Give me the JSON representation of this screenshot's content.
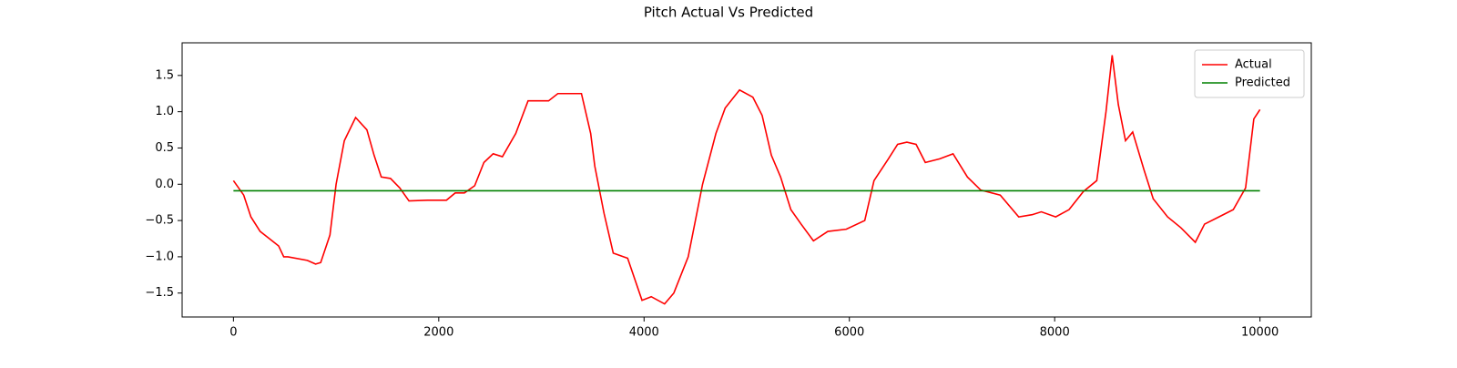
{
  "chart_data": {
    "type": "line",
    "title": "Pitch Actual Vs Predicted",
    "series": [
      {
        "name": "Actual",
        "color": "#ff0000",
        "x": [
          0,
          100,
          170,
          260,
          350,
          440,
          490,
          530,
          720,
          800,
          850,
          940,
          1000,
          1080,
          1190,
          1300,
          1370,
          1440,
          1530,
          1620,
          1710,
          1890,
          2075,
          2160,
          2250,
          2350,
          2440,
          2530,
          2620,
          2750,
          2870,
          3070,
          3160,
          3390,
          3480,
          3520,
          3610,
          3700,
          3840,
          3980,
          4070,
          4200,
          4290,
          4430,
          4570,
          4700,
          4790,
          4930,
          5060,
          5150,
          5240,
          5330,
          5430,
          5530,
          5650,
          5790,
          5970,
          6150,
          6240,
          6380,
          6470,
          6560,
          6650,
          6740,
          6880,
          7010,
          7150,
          7280,
          7470,
          7650,
          7780,
          7870,
          8010,
          8140,
          8280,
          8410,
          8500,
          8560,
          8620,
          8690,
          8760,
          8870,
          8960,
          9100,
          9230,
          9370,
          9460,
          9600,
          9740,
          9860,
          9940,
          10000
        ],
        "values": [
          0.05,
          -0.15,
          -0.45,
          -0.65,
          -0.75,
          -0.85,
          -1.0,
          -1.0,
          -1.05,
          -1.1,
          -1.08,
          -0.7,
          0.0,
          0.6,
          0.92,
          0.75,
          0.4,
          0.1,
          0.08,
          -0.05,
          -0.23,
          -0.22,
          -0.22,
          -0.12,
          -0.12,
          -0.02,
          0.3,
          0.42,
          0.38,
          0.7,
          1.15,
          1.15,
          1.25,
          1.25,
          0.7,
          0.25,
          -0.4,
          -0.95,
          -1.02,
          -1.6,
          -1.55,
          -1.65,
          -1.5,
          -1.0,
          0.0,
          0.7,
          1.05,
          1.3,
          1.2,
          0.95,
          0.4,
          0.1,
          -0.35,
          -0.55,
          -0.78,
          -0.65,
          -0.62,
          -0.5,
          0.05,
          0.35,
          0.55,
          0.58,
          0.55,
          0.3,
          0.35,
          0.42,
          0.1,
          -0.08,
          -0.15,
          -0.45,
          -0.42,
          -0.38,
          -0.45,
          -0.35,
          -0.1,
          0.05,
          1.0,
          1.78,
          1.1,
          0.6,
          0.72,
          0.2,
          -0.2,
          -0.45,
          -0.6,
          -0.8,
          -0.55,
          -0.45,
          -0.35,
          -0.05,
          0.9,
          1.03
        ]
      },
      {
        "name": "Predicted",
        "color": "#008000",
        "x": [
          0,
          10000
        ],
        "values": [
          -0.09,
          -0.09
        ]
      }
    ],
    "xlim": [
      -500,
      10500
    ],
    "xticks": [
      0,
      2000,
      4000,
      6000,
      8000,
      10000
    ],
    "ylim": [
      -1.83,
      1.95
    ],
    "yticks": [
      {
        "value": -1.5,
        "label": "−1.5"
      },
      {
        "value": -1.0,
        "label": "−1.0"
      },
      {
        "value": -0.5,
        "label": "−0.5"
      },
      {
        "value": 0.0,
        "label": "0.0"
      },
      0.5,
      {
        "value": 1.0,
        "label": "1.0"
      },
      1.5
    ],
    "grid": false,
    "legend": "upper right"
  }
}
